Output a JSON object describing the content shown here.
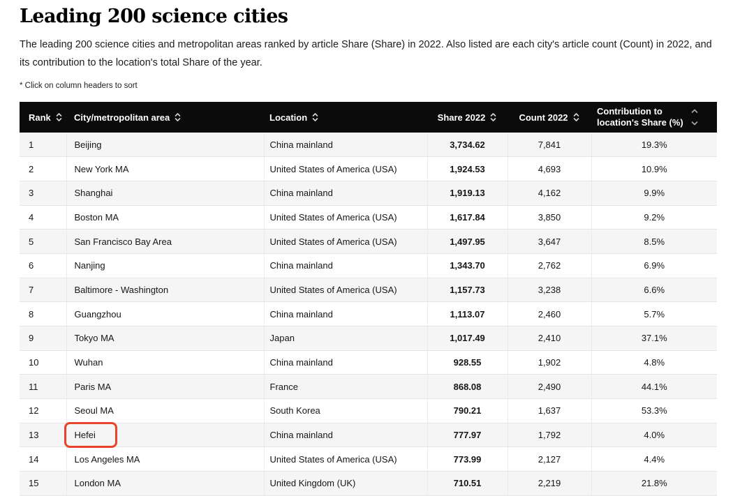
{
  "page": {
    "title": "Leading 200 science cities",
    "subtitle_line1": "The leading 200 science cities and metropolitan areas ranked by article Share (Share) in 2022. Also listed are each city's article count (Count) in 2022, and",
    "subtitle_line2": "its contribution to the location's total Share of the year.",
    "sort_note": "* Click on column headers to sort"
  },
  "colors": {
    "header_bg": "#0b0b0b",
    "header_text": "#ffffff",
    "row_stripe": "#f5f5f5",
    "row_border": "#e5e5e5",
    "annotation_red": "#e8432c"
  },
  "icons": {
    "sort": "sort-chevrons-up-down"
  },
  "table": {
    "columns": [
      {
        "id": "rank",
        "label": "Rank",
        "sortable": true
      },
      {
        "id": "city",
        "label": "City/metropolitan area",
        "sortable": true
      },
      {
        "id": "location",
        "label": "Location",
        "sortable": true
      },
      {
        "id": "share",
        "label": "Share 2022",
        "sortable": true
      },
      {
        "id": "count",
        "label": "Count 2022",
        "sortable": true
      },
      {
        "id": "contribution",
        "label_line1": "Contribution to",
        "label_line2": "location's Share (%)",
        "sortable": true
      }
    ],
    "rows": [
      {
        "rank": "1",
        "city": "Beijing",
        "location": "China mainland",
        "share": "3,734.62",
        "count": "7,841",
        "contribution": "19.3%"
      },
      {
        "rank": "2",
        "city": "New York MA",
        "location": "United States of America (USA)",
        "share": "1,924.53",
        "count": "4,693",
        "contribution": "10.9%"
      },
      {
        "rank": "3",
        "city": "Shanghai",
        "location": "China mainland",
        "share": "1,919.13",
        "count": "4,162",
        "contribution": "9.9%"
      },
      {
        "rank": "4",
        "city": "Boston MA",
        "location": "United States of America (USA)",
        "share": "1,617.84",
        "count": "3,850",
        "contribution": "9.2%"
      },
      {
        "rank": "5",
        "city": "San Francisco Bay Area",
        "location": "United States of America (USA)",
        "share": "1,497.95",
        "count": "3,647",
        "contribution": "8.5%"
      },
      {
        "rank": "6",
        "city": "Nanjing",
        "location": "China mainland",
        "share": "1,343.70",
        "count": "2,762",
        "contribution": "6.9%"
      },
      {
        "rank": "7",
        "city": "Baltimore - Washington",
        "location": "United States of America (USA)",
        "share": "1,157.73",
        "count": "3,238",
        "contribution": "6.6%"
      },
      {
        "rank": "8",
        "city": "Guangzhou",
        "location": "China mainland",
        "share": "1,113.07",
        "count": "2,460",
        "contribution": "5.7%"
      },
      {
        "rank": "9",
        "city": "Tokyo MA",
        "location": "Japan",
        "share": "1,017.49",
        "count": "2,410",
        "contribution": "37.1%"
      },
      {
        "rank": "10",
        "city": "Wuhan",
        "location": "China mainland",
        "share": "928.55",
        "count": "1,902",
        "contribution": "4.8%"
      },
      {
        "rank": "11",
        "city": "Paris MA",
        "location": "France",
        "share": "868.08",
        "count": "2,490",
        "contribution": "44.1%"
      },
      {
        "rank": "12",
        "city": "Seoul MA",
        "location": "South Korea",
        "share": "790.21",
        "count": "1,637",
        "contribution": "53.3%"
      },
      {
        "rank": "13",
        "city": "Hefei",
        "location": "China mainland",
        "share": "777.97",
        "count": "1,792",
        "contribution": "4.0%",
        "annotated": true
      },
      {
        "rank": "14",
        "city": "Los Angeles MA",
        "location": "United States of America (USA)",
        "share": "773.99",
        "count": "2,127",
        "contribution": "4.4%"
      },
      {
        "rank": "15",
        "city": "London MA",
        "location": "United Kingdom (UK)",
        "share": "710.51",
        "count": "2,219",
        "contribution": "21.8%"
      }
    ]
  }
}
